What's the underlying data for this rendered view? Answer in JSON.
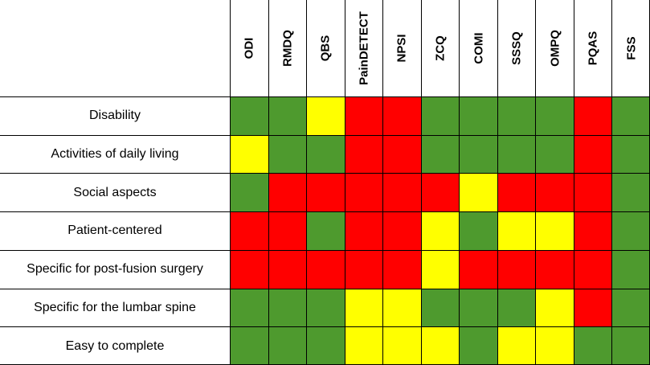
{
  "chart_data": {
    "type": "heatmap",
    "columns": [
      "ODI",
      "RMDQ",
      "QBS",
      "PainDETECT",
      "NPSI",
      "ZCQ",
      "COMI",
      "SSSQ",
      "OMPQ",
      "PQAS",
      "FSS"
    ],
    "rows": [
      "Disability",
      "Activities of daily living",
      "Social aspects",
      "Patient-centered",
      "Specific for post-fusion surgery",
      "Specific for the lumbar spine",
      "Easy to complete"
    ],
    "values": [
      [
        "green",
        "green",
        "yellow",
        "red",
        "red",
        "green",
        "green",
        "green",
        "green",
        "red",
        "green"
      ],
      [
        "yellow",
        "green",
        "green",
        "red",
        "red",
        "green",
        "green",
        "green",
        "green",
        "red",
        "green"
      ],
      [
        "green",
        "red",
        "red",
        "red",
        "red",
        "red",
        "yellow",
        "red",
        "red",
        "red",
        "green"
      ],
      [
        "red",
        "red",
        "green",
        "red",
        "red",
        "yellow",
        "green",
        "yellow",
        "yellow",
        "red",
        "green"
      ],
      [
        "red",
        "red",
        "red",
        "red",
        "red",
        "yellow",
        "red",
        "red",
        "red",
        "red",
        "green"
      ],
      [
        "green",
        "green",
        "green",
        "yellow",
        "yellow",
        "green",
        "green",
        "green",
        "yellow",
        "red",
        "green"
      ],
      [
        "green",
        "green",
        "green",
        "yellow",
        "yellow",
        "yellow",
        "green",
        "yellow",
        "yellow",
        "green",
        "green"
      ]
    ],
    "legend": []
  },
  "colors": {
    "green": "#4e9a2e",
    "yellow": "#ffff00",
    "red": "#ff0000",
    "grid": "#000000"
  }
}
